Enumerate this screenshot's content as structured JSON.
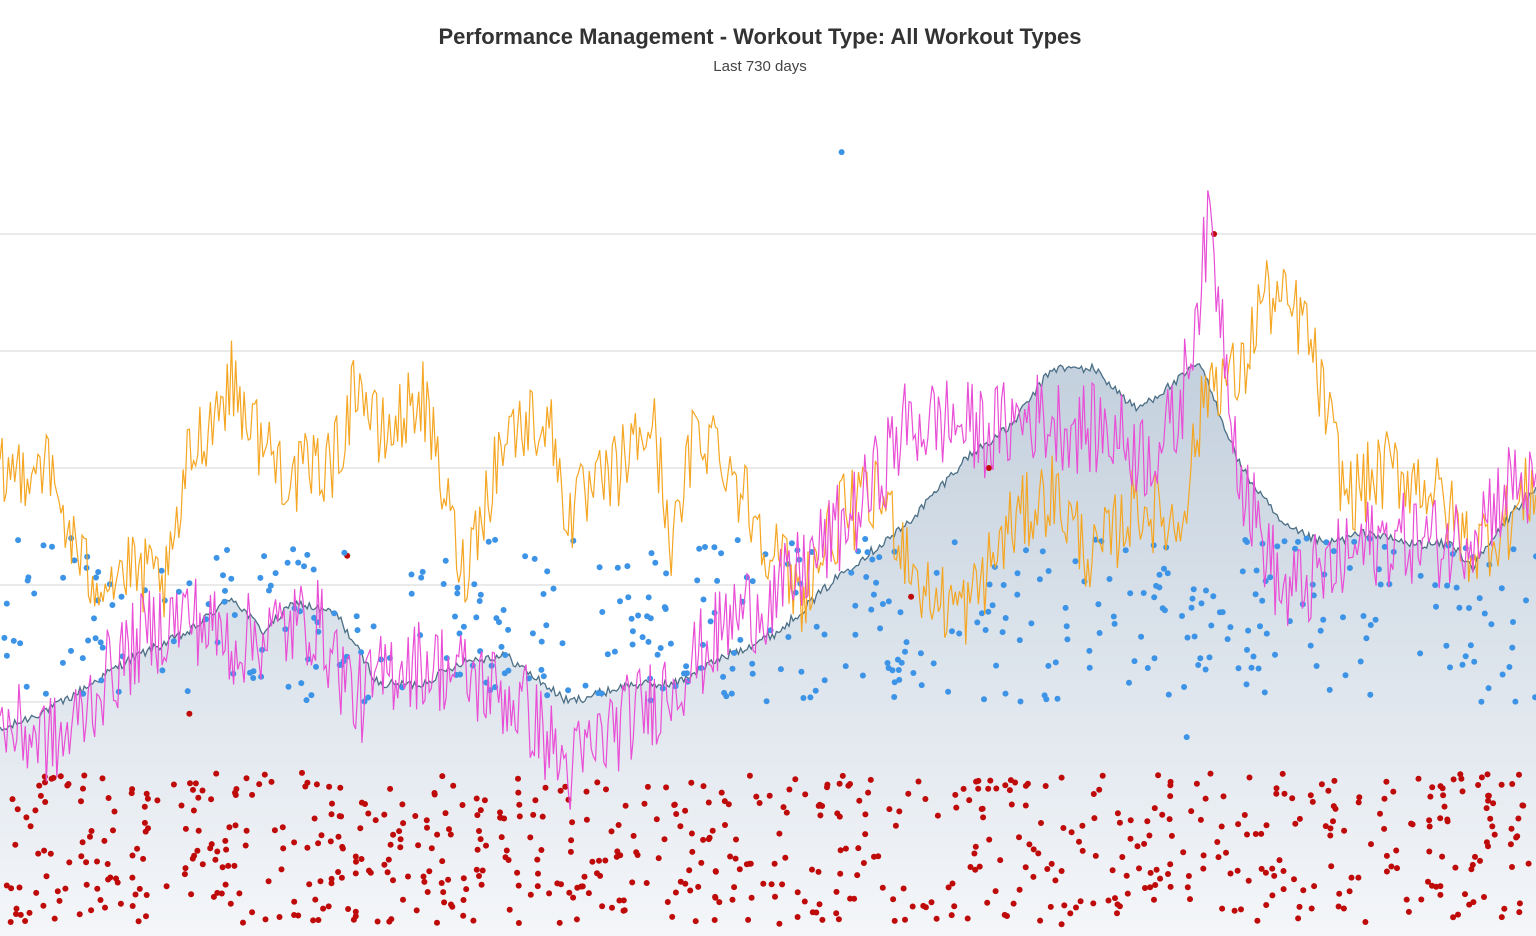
{
  "header": {
    "title": "Performance Management - Workout Type: All Workout Types",
    "subtitle": "Last 730 days"
  },
  "colors": {
    "gridline": "#d6d6d6",
    "ctl_area_top": "#c3d0dd",
    "ctl_area_bottom": "#f4f6f9",
    "ctl_line": "#4c6f86",
    "tsb_line": "#f5a623",
    "atl_line": "#e94ed6",
    "tss_points": "#bf0a0a",
    "if_points": "#3d94e6"
  },
  "chart_data": {
    "type": "line",
    "title": "Performance Management - Workout Type: All Workout Types",
    "subtitle": "Last 730 days",
    "x": {
      "range_days": [
        0,
        730
      ]
    },
    "ylim": [
      0,
      140
    ],
    "grid": true,
    "gridlines_y": [
      20,
      40,
      60,
      80,
      100,
      120
    ],
    "series": [
      {
        "kind": "area",
        "color": "#4c6f86",
        "keypoints": [
          [
            0,
            35
          ],
          [
            30,
            40
          ],
          [
            60,
            47
          ],
          [
            90,
            52
          ],
          [
            110,
            58
          ],
          [
            125,
            52
          ],
          [
            140,
            57
          ],
          [
            160,
            55
          ],
          [
            180,
            43
          ],
          [
            200,
            43
          ],
          [
            220,
            47
          ],
          [
            240,
            48
          ],
          [
            270,
            40
          ],
          [
            300,
            43
          ],
          [
            320,
            43
          ],
          [
            340,
            47
          ],
          [
            370,
            52
          ],
          [
            400,
            62
          ],
          [
            430,
            70
          ],
          [
            460,
            82
          ],
          [
            480,
            87
          ],
          [
            500,
            97
          ],
          [
            520,
            97
          ],
          [
            540,
            90
          ],
          [
            560,
            95
          ],
          [
            570,
            98
          ],
          [
            590,
            80
          ],
          [
            610,
            70
          ],
          [
            630,
            67
          ],
          [
            650,
            69
          ],
          [
            670,
            67
          ],
          [
            690,
            67
          ],
          [
            700,
            63
          ],
          [
            720,
            73
          ],
          [
            730,
            76
          ]
        ]
      },
      {
        "kind": "line",
        "color": "#f5a623",
        "keypoints": [
          [
            0,
            78
          ],
          [
            20,
            82
          ],
          [
            40,
            62
          ],
          [
            60,
            62
          ],
          [
            80,
            60
          ],
          [
            90,
            82
          ],
          [
            110,
            95
          ],
          [
            125,
            84
          ],
          [
            140,
            78
          ],
          [
            160,
            82
          ],
          [
            170,
            96
          ],
          [
            180,
            85
          ],
          [
            190,
            88
          ],
          [
            200,
            93
          ],
          [
            220,
            62
          ],
          [
            240,
            86
          ],
          [
            260,
            89
          ],
          [
            270,
            72
          ],
          [
            290,
            78
          ],
          [
            310,
            88
          ],
          [
            320,
            66
          ],
          [
            330,
            86
          ],
          [
            340,
            85
          ],
          [
            360,
            71
          ],
          [
            380,
            58
          ],
          [
            400,
            72
          ],
          [
            420,
            75
          ],
          [
            440,
            58
          ],
          [
            460,
            56
          ],
          [
            480,
            70
          ],
          [
            500,
            76
          ],
          [
            520,
            64
          ],
          [
            540,
            74
          ],
          [
            560,
            70
          ],
          [
            575,
            96
          ],
          [
            590,
            95
          ],
          [
            600,
            110
          ],
          [
            620,
            105
          ],
          [
            640,
            75
          ],
          [
            660,
            80
          ],
          [
            680,
            77
          ],
          [
            700,
            66
          ],
          [
            720,
            72
          ],
          [
            730,
            78
          ]
        ]
      },
      {
        "kind": "line",
        "color": "#e94ed6",
        "keypoints": [
          [
            0,
            36
          ],
          [
            30,
            33
          ],
          [
            50,
            44
          ],
          [
            70,
            52
          ],
          [
            90,
            55
          ],
          [
            110,
            50
          ],
          [
            130,
            52
          ],
          [
            150,
            54
          ],
          [
            170,
            40
          ],
          [
            190,
            47
          ],
          [
            210,
            46
          ],
          [
            230,
            43
          ],
          [
            250,
            39
          ],
          [
            270,
            28
          ],
          [
            290,
            35
          ],
          [
            310,
            40
          ],
          [
            330,
            47
          ],
          [
            350,
            55
          ],
          [
            370,
            58
          ],
          [
            390,
            66
          ],
          [
            410,
            74
          ],
          [
            430,
            87
          ],
          [
            450,
            88
          ],
          [
            470,
            86
          ],
          [
            490,
            89
          ],
          [
            510,
            87
          ],
          [
            530,
            86
          ],
          [
            545,
            82
          ],
          [
            560,
            88
          ],
          [
            575,
            122
          ],
          [
            590,
            78
          ],
          [
            610,
            58
          ],
          [
            630,
            62
          ],
          [
            650,
            67
          ],
          [
            670,
            68
          ],
          [
            690,
            67
          ],
          [
            700,
            70
          ],
          [
            720,
            78
          ],
          [
            730,
            75
          ]
        ]
      },
      {
        "kind": "scatter",
        "color": "#3d94e6",
        "band": [
          40,
          68
        ],
        "outliers": [
          [
            400,
            134
          ],
          [
            477,
            60
          ],
          [
            564,
            34
          ],
          [
            555,
            62
          ],
          [
            270,
            42
          ]
        ]
      },
      {
        "kind": "scatter",
        "color": "#bf0a0a",
        "band": [
          2,
          28
        ],
        "outliers": [
          [
            165,
            65
          ],
          [
            577,
            120
          ],
          [
            470,
            80
          ],
          [
            433,
            58
          ],
          [
            90,
            38
          ]
        ]
      }
    ]
  }
}
